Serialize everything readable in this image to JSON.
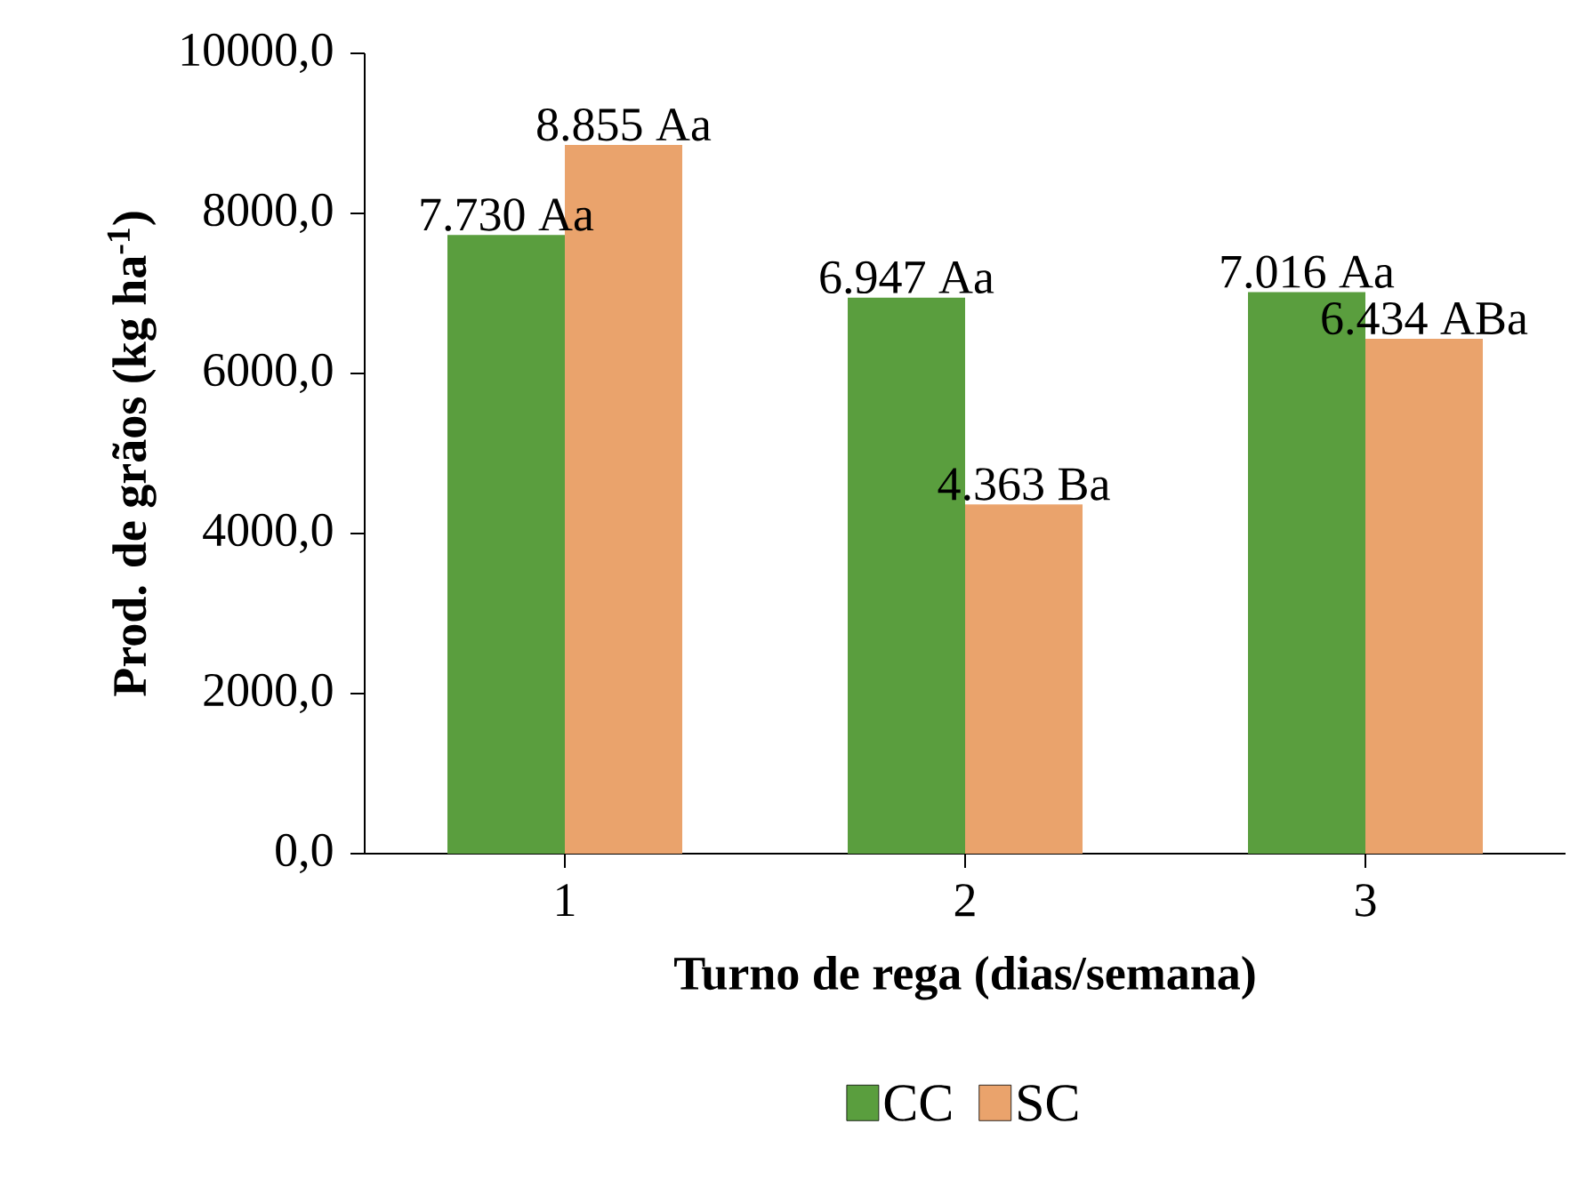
{
  "chart_data": {
    "type": "bar",
    "xlabel": "Turno de rega (dias/semana)",
    "ylabel": "Prod. de grãos (kg ha$^{-1}$)",
    "categories": [
      "1",
      "2",
      "3"
    ],
    "series": [
      {
        "name": "CC",
        "color": "#5a9e3e",
        "values": [
          7730,
          6947,
          7016
        ],
        "value_labels": [
          "7.730 Aa",
          "6.947 Aa",
          "7.016 Aa"
        ]
      },
      {
        "name": "SC",
        "color": "#eaa36c",
        "values": [
          8855,
          4363,
          6434
        ],
        "value_labels": [
          "8.855 Aa",
          "4.363 Ba",
          "6.434 ABa"
        ]
      }
    ],
    "ylim": [
      0,
      10000
    ],
    "yticks": [
      {
        "value": 0,
        "label": "0,0"
      },
      {
        "value": 2000,
        "label": "2000,0"
      },
      {
        "value": 4000,
        "label": "4000,0"
      },
      {
        "value": 6000,
        "label": "6000,0"
      },
      {
        "value": 8000,
        "label": "8000,0"
      },
      {
        "value": 10000,
        "label": "10000,0"
      }
    ],
    "grid": false,
    "legend": "bottom"
  }
}
